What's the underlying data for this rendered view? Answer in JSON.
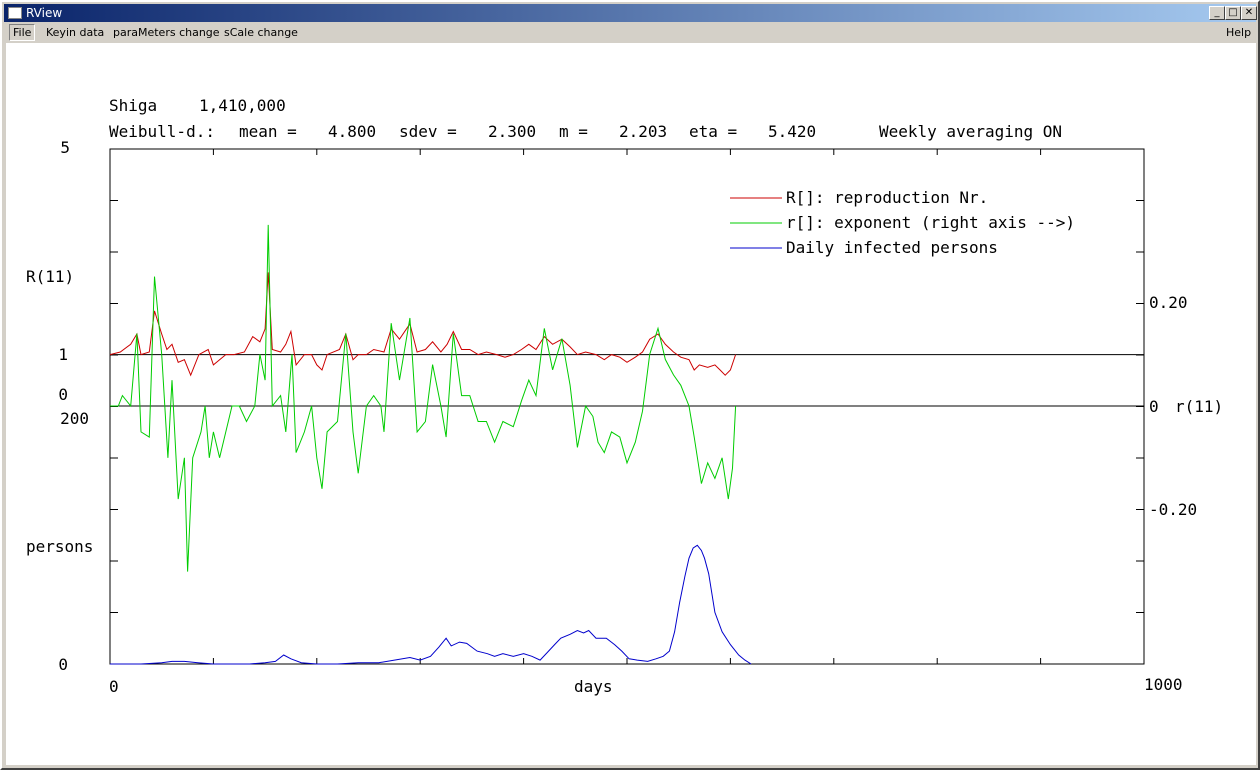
{
  "window": {
    "title": "RView",
    "controls": {
      "minimize": "_",
      "maximize": "□",
      "close": "✕"
    }
  },
  "menu": {
    "file": "File",
    "keyin": "Keyin data",
    "parameters": "paraMeters change",
    "scale": "sCale change",
    "help": "Help"
  },
  "chart_data": {
    "type": "line",
    "header": {
      "region": "Shiga",
      "population": "1,410,000",
      "distribution": "Weibull-d.:",
      "mean_label": "mean =",
      "mean": "4.800",
      "sdev_label": "sdev =",
      "sdev": "2.300",
      "m_label": "m =",
      "m": "2.203",
      "eta_label": "eta =",
      "eta": "5.420",
      "averaging": "Weekly averaging ON"
    },
    "xlabel": "days",
    "xlim": [
      0,
      1000
    ],
    "x_ticks": [
      "0",
      "1000"
    ],
    "upper_left_axis": {
      "label": "R(11)",
      "ticks": [
        "5",
        "1",
        "0"
      ],
      "ylim": [
        0,
        5
      ]
    },
    "lower_left_axis": {
      "label": "persons",
      "ticks": [
        "200",
        "0"
      ],
      "ylim": [
        0,
        200
      ]
    },
    "right_axis": {
      "label": "r(11)",
      "ticks": [
        "0.20",
        "0",
        "-0.20"
      ],
      "ylim": [
        -0.4,
        0.4
      ]
    },
    "legend_position": "top-right",
    "series": [
      {
        "name": "R[]: reproduction Nr.",
        "color": "#cc0000",
        "axis": "R",
        "points": [
          [
            0,
            1
          ],
          [
            10,
            1.05
          ],
          [
            20,
            1.2
          ],
          [
            26,
            1.4
          ],
          [
            30,
            1.0
          ],
          [
            38,
            1.05
          ],
          [
            43,
            1.85
          ],
          [
            50,
            1.4
          ],
          [
            55,
            1.1
          ],
          [
            60,
            1.2
          ],
          [
            66,
            0.85
          ],
          [
            72,
            0.9
          ],
          [
            78,
            0.6
          ],
          [
            86,
            1.0
          ],
          [
            95,
            1.1
          ],
          [
            100,
            0.8
          ],
          [
            106,
            0.9
          ],
          [
            112,
            1.0
          ],
          [
            120,
            1.0
          ],
          [
            130,
            1.05
          ],
          [
            138,
            1.35
          ],
          [
            145,
            1.25
          ],
          [
            150,
            1.5
          ],
          [
            153,
            2.6
          ],
          [
            157,
            1.1
          ],
          [
            165,
            1.05
          ],
          [
            170,
            1.2
          ],
          [
            175,
            1.45
          ],
          [
            180,
            0.8
          ],
          [
            188,
            1.0
          ],
          [
            195,
            1.0
          ],
          [
            200,
            0.8
          ],
          [
            205,
            0.7
          ],
          [
            210,
            1.0
          ],
          [
            222,
            1.1
          ],
          [
            228,
            1.4
          ],
          [
            235,
            0.9
          ],
          [
            240,
            1.0
          ],
          [
            248,
            1.0
          ],
          [
            255,
            1.1
          ],
          [
            265,
            1.05
          ],
          [
            272,
            1.5
          ],
          [
            280,
            1.3
          ],
          [
            290,
            1.6
          ],
          [
            297,
            1.05
          ],
          [
            305,
            1.1
          ],
          [
            312,
            1.25
          ],
          [
            320,
            1.05
          ],
          [
            326,
            1.2
          ],
          [
            332,
            1.45
          ],
          [
            340,
            1.1
          ],
          [
            348,
            1.1
          ],
          [
            356,
            1.0
          ],
          [
            364,
            1.05
          ],
          [
            374,
            1.0
          ],
          [
            382,
            0.95
          ],
          [
            390,
            1.0
          ],
          [
            398,
            1.1
          ],
          [
            405,
            1.2
          ],
          [
            412,
            1.1
          ],
          [
            420,
            1.35
          ],
          [
            428,
            1.2
          ],
          [
            437,
            1.3
          ],
          [
            445,
            1.15
          ],
          [
            452,
            1.0
          ],
          [
            460,
            1.05
          ],
          [
            470,
            1.0
          ],
          [
            478,
            0.9
          ],
          [
            485,
            1.0
          ],
          [
            493,
            0.95
          ],
          [
            500,
            0.85
          ],
          [
            508,
            0.95
          ],
          [
            515,
            1.05
          ],
          [
            522,
            1.3
          ],
          [
            530,
            1.4
          ],
          [
            537,
            1.2
          ],
          [
            545,
            1.05
          ],
          [
            552,
            0.95
          ],
          [
            560,
            0.9
          ],
          [
            565,
            0.7
          ],
          [
            570,
            0.8
          ],
          [
            578,
            0.75
          ],
          [
            585,
            0.8
          ],
          [
            590,
            0.7
          ],
          [
            595,
            0.6
          ],
          [
            600,
            0.7
          ],
          [
            605,
            1.0
          ]
        ]
      },
      {
        "name": "r[]: exponent (right axis -->)",
        "color": "#00cc00",
        "axis": "r",
        "points": [
          [
            0,
            0
          ],
          [
            8,
            0
          ],
          [
            12,
            0.02
          ],
          [
            20,
            0
          ],
          [
            26,
            0.14
          ],
          [
            30,
            -0.05
          ],
          [
            38,
            -0.06
          ],
          [
            43,
            0.25
          ],
          [
            50,
            0.1
          ],
          [
            56,
            -0.1
          ],
          [
            60,
            0.05
          ],
          [
            66,
            -0.18
          ],
          [
            72,
            -0.1
          ],
          [
            75,
            -0.32
          ],
          [
            80,
            -0.1
          ],
          [
            88,
            -0.05
          ],
          [
            92,
            0.0
          ],
          [
            96,
            -0.1
          ],
          [
            100,
            -0.05
          ],
          [
            106,
            -0.1
          ],
          [
            112,
            -0.05
          ],
          [
            118,
            0.0
          ],
          [
            125,
            0.0
          ],
          [
            132,
            -0.03
          ],
          [
            140,
            0.0
          ],
          [
            145,
            0.1
          ],
          [
            150,
            0.05
          ],
          [
            153,
            0.35
          ],
          [
            157,
            0.0
          ],
          [
            165,
            0.02
          ],
          [
            170,
            -0.05
          ],
          [
            176,
            0.1
          ],
          [
            180,
            -0.09
          ],
          [
            188,
            -0.05
          ],
          [
            195,
            0.0
          ],
          [
            200,
            -0.1
          ],
          [
            205,
            -0.16
          ],
          [
            210,
            -0.05
          ],
          [
            220,
            -0.03
          ],
          [
            228,
            0.14
          ],
          [
            235,
            -0.05
          ],
          [
            240,
            -0.13
          ],
          [
            248,
            0.0
          ],
          [
            255,
            0.02
          ],
          [
            262,
            0.0
          ],
          [
            265,
            -0.05
          ],
          [
            272,
            0.16
          ],
          [
            280,
            0.05
          ],
          [
            290,
            0.17
          ],
          [
            297,
            -0.05
          ],
          [
            305,
            -0.03
          ],
          [
            312,
            0.08
          ],
          [
            320,
            0.0
          ],
          [
            325,
            -0.06
          ],
          [
            332,
            0.14
          ],
          [
            340,
            0.02
          ],
          [
            348,
            0.02
          ],
          [
            356,
            -0.03
          ],
          [
            364,
            -0.03
          ],
          [
            372,
            -0.07
          ],
          [
            380,
            -0.03
          ],
          [
            390,
            -0.04
          ],
          [
            398,
            0.01
          ],
          [
            405,
            0.05
          ],
          [
            412,
            0.02
          ],
          [
            420,
            0.15
          ],
          [
            428,
            0.07
          ],
          [
            437,
            0.13
          ],
          [
            445,
            0.04
          ],
          [
            452,
            -0.08
          ],
          [
            460,
            0.0
          ],
          [
            467,
            -0.02
          ],
          [
            472,
            -0.07
          ],
          [
            478,
            -0.09
          ],
          [
            485,
            -0.05
          ],
          [
            493,
            -0.06
          ],
          [
            500,
            -0.11
          ],
          [
            508,
            -0.07
          ],
          [
            515,
            -0.01
          ],
          [
            522,
            0.1
          ],
          [
            530,
            0.15
          ],
          [
            537,
            0.09
          ],
          [
            545,
            0.06
          ],
          [
            552,
            0.04
          ],
          [
            560,
            0.0
          ],
          [
            565,
            -0.06
          ],
          [
            572,
            -0.15
          ],
          [
            578,
            -0.11
          ],
          [
            585,
            -0.14
          ],
          [
            592,
            -0.1
          ],
          [
            598,
            -0.18
          ],
          [
            602,
            -0.12
          ],
          [
            605,
            0.0
          ]
        ]
      },
      {
        "name": "Daily infected persons",
        "color": "#0000cc",
        "axis": "persons",
        "points": [
          [
            0,
            0
          ],
          [
            30,
            0
          ],
          [
            50,
            1
          ],
          [
            60,
            2
          ],
          [
            72,
            2
          ],
          [
            85,
            1
          ],
          [
            100,
            0
          ],
          [
            120,
            0
          ],
          [
            135,
            0
          ],
          [
            150,
            1
          ],
          [
            160,
            2
          ],
          [
            168,
            7
          ],
          [
            175,
            4
          ],
          [
            185,
            1
          ],
          [
            200,
            0
          ],
          [
            220,
            0
          ],
          [
            240,
            1
          ],
          [
            260,
            1
          ],
          [
            275,
            3
          ],
          [
            290,
            5
          ],
          [
            300,
            3
          ],
          [
            310,
            6
          ],
          [
            318,
            13
          ],
          [
            325,
            20
          ],
          [
            330,
            14
          ],
          [
            338,
            17
          ],
          [
            345,
            16
          ],
          [
            355,
            10
          ],
          [
            365,
            8
          ],
          [
            372,
            6
          ],
          [
            380,
            8
          ],
          [
            390,
            6
          ],
          [
            400,
            8
          ],
          [
            408,
            6
          ],
          [
            416,
            3
          ],
          [
            423,
            9
          ],
          [
            430,
            15
          ],
          [
            436,
            20
          ],
          [
            445,
            23
          ],
          [
            452,
            26
          ],
          [
            458,
            24
          ],
          [
            463,
            26
          ],
          [
            470,
            20
          ],
          [
            480,
            20
          ],
          [
            488,
            15
          ],
          [
            495,
            10
          ],
          [
            502,
            4
          ],
          [
            510,
            3
          ],
          [
            520,
            2
          ],
          [
            528,
            4
          ],
          [
            535,
            6
          ],
          [
            541,
            10
          ],
          [
            546,
            25
          ],
          [
            551,
            48
          ],
          [
            556,
            68
          ],
          [
            560,
            82
          ],
          [
            564,
            90
          ],
          [
            568,
            92
          ],
          [
            572,
            88
          ],
          [
            575,
            82
          ],
          [
            579,
            70
          ],
          [
            585,
            40
          ],
          [
            592,
            25
          ],
          [
            600,
            15
          ],
          [
            608,
            7
          ],
          [
            614,
            3
          ],
          [
            620,
            0
          ]
        ]
      }
    ]
  }
}
